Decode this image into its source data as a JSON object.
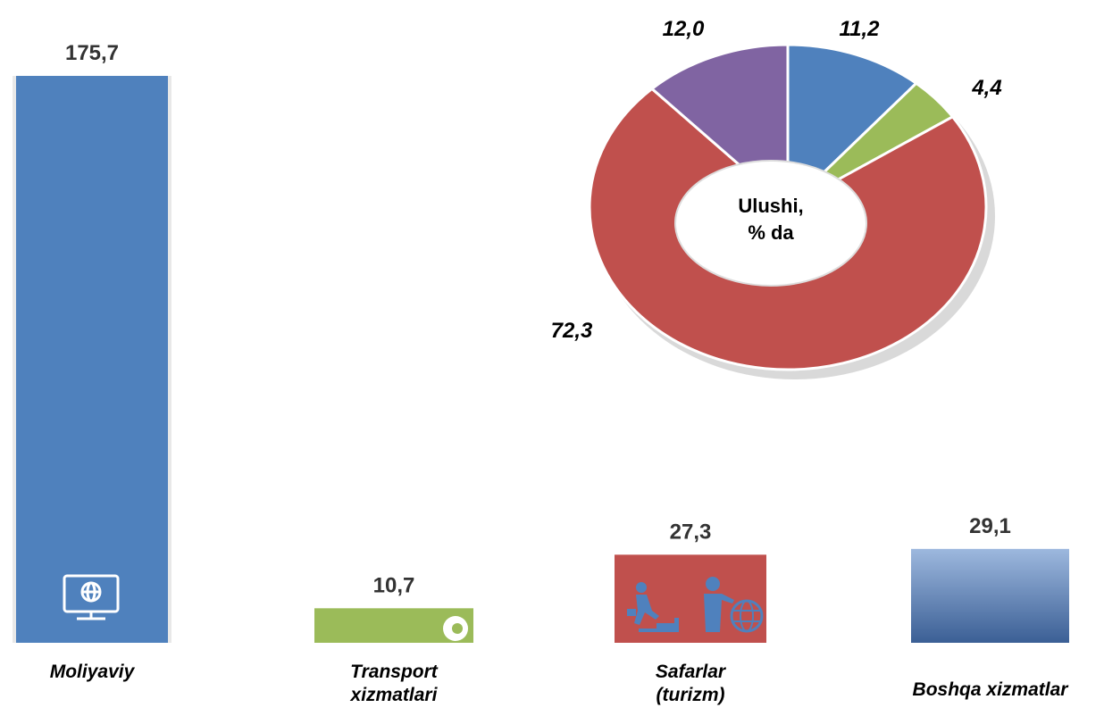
{
  "chart_data": [
    {
      "type": "bar",
      "categories": [
        "Moliyaviy",
        "Transport xizmatlari",
        "Safarlar (turizm)",
        "Boshqa xizmatlar"
      ],
      "values": [
        175.7,
        10.7,
        27.3,
        29.1
      ],
      "value_labels": [
        "175,7",
        "10,7",
        "27,3",
        "29,1"
      ],
      "colors": [
        "#4f81bd",
        "#9bbb59",
        "#c0504d",
        "#5f86bf"
      ]
    },
    {
      "type": "donut",
      "center_label": [
        "Ulushi,",
        "% da"
      ],
      "values": [
        11.2,
        4.4,
        72.3,
        12.0
      ],
      "value_labels": [
        "11,2",
        "4,4",
        "72,3",
        "12,0"
      ],
      "colors": [
        "#4f81bd",
        "#9bbb59",
        "#c0504d",
        "#8064a2"
      ]
    }
  ]
}
